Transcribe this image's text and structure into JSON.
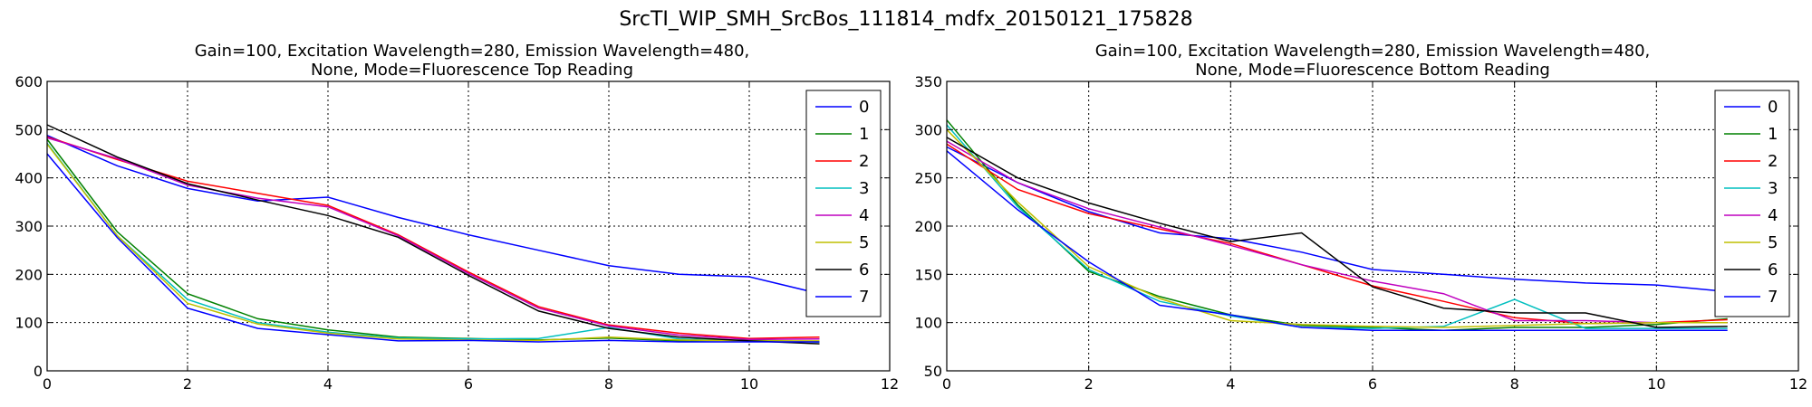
{
  "figure": {
    "suptitle": "SrcTI_WIP_SMH_SrcBos_111814_mdfx_20150121_175828"
  },
  "colors": [
    "#0000ff",
    "#008000",
    "#ff0000",
    "#00bfbf",
    "#bf00bf",
    "#bfbf00",
    "#000000",
    "#0000ff"
  ],
  "chart_data": [
    {
      "type": "line",
      "title_line1": "Gain=100, Excitation Wavelength=280, Emission Wavelength=480,",
      "title_line2": "None, Mode=Fluorescence Top Reading",
      "xlim": [
        0,
        12
      ],
      "ylim": [
        0,
        600
      ],
      "xticks": [
        0,
        2,
        4,
        6,
        8,
        10,
        12
      ],
      "yticks": [
        0,
        100,
        200,
        300,
        400,
        500,
        600
      ],
      "grid": true,
      "legend_position": "top-right",
      "x": [
        0,
        1,
        2,
        3,
        4,
        5,
        6,
        7,
        8,
        9,
        10,
        11
      ],
      "series": [
        {
          "name": "0",
          "values": [
            488,
            425,
            378,
            352,
            360,
            318,
            282,
            250,
            218,
            200,
            195,
            160
          ]
        },
        {
          "name": "1",
          "values": [
            480,
            288,
            160,
            108,
            85,
            70,
            67,
            64,
            68,
            62,
            64,
            60
          ]
        },
        {
          "name": "2",
          "values": [
            485,
            438,
            393,
            368,
            343,
            282,
            205,
            133,
            95,
            78,
            67,
            70
          ]
        },
        {
          "name": "3",
          "values": [
            472,
            280,
            148,
            100,
            80,
            68,
            66,
            67,
            90,
            66,
            62,
            60
          ]
        },
        {
          "name": "4",
          "values": [
            483,
            440,
            385,
            358,
            340,
            280,
            202,
            130,
            93,
            74,
            65,
            66
          ]
        },
        {
          "name": "5",
          "values": [
            470,
            280,
            140,
            97,
            78,
            66,
            64,
            63,
            70,
            64,
            62,
            62
          ]
        },
        {
          "name": "6",
          "values": [
            510,
            443,
            388,
            354,
            322,
            277,
            198,
            124,
            88,
            70,
            62,
            56
          ]
        },
        {
          "name": "7",
          "values": [
            450,
            276,
            130,
            88,
            75,
            62,
            63,
            60,
            63,
            60,
            60,
            60
          ]
        }
      ]
    },
    {
      "type": "line",
      "title_line1": "Gain=100, Excitation Wavelength=280, Emission Wavelength=480,",
      "title_line2": "None, Mode=Fluorescence Bottom Reading",
      "xlim": [
        0,
        12
      ],
      "ylim": [
        50,
        350
      ],
      "xticks": [
        0,
        2,
        4,
        6,
        8,
        10,
        12
      ],
      "yticks": [
        50,
        100,
        150,
        200,
        250,
        300,
        350
      ],
      "grid": true,
      "legend_position": "top-right",
      "x": [
        0,
        1,
        2,
        3,
        4,
        5,
        6,
        7,
        8,
        9,
        10,
        11
      ],
      "series": [
        {
          "name": "0",
          "values": [
            282,
            245,
            215,
            193,
            187,
            173,
            155,
            150,
            145,
            141,
            139,
            132
          ]
        },
        {
          "name": "1",
          "values": [
            310,
            222,
            153,
            127,
            108,
            97,
            95,
            92,
            95,
            95,
            98,
            104
          ]
        },
        {
          "name": "2",
          "values": [
            285,
            238,
            213,
            197,
            182,
            160,
            138,
            122,
            105,
            99,
            100,
            103
          ]
        },
        {
          "name": "3",
          "values": [
            305,
            220,
            155,
            122,
            107,
            95,
            94,
            96,
            124,
            94,
            94,
            94
          ]
        },
        {
          "name": "4",
          "values": [
            288,
            245,
            218,
            199,
            180,
            160,
            143,
            130,
            102,
            102,
            100,
            100
          ]
        },
        {
          "name": "5",
          "values": [
            300,
            225,
            158,
            125,
            102,
            98,
            96,
            95,
            97,
            99,
            100,
            100
          ]
        },
        {
          "name": "6",
          "values": [
            292,
            250,
            224,
            203,
            184,
            193,
            137,
            115,
            110,
            110,
            95,
            96
          ]
        },
        {
          "name": "7",
          "values": [
            278,
            217,
            163,
            118,
            108,
            95,
            92,
            92,
            92,
            92,
            92,
            92
          ]
        }
      ]
    }
  ]
}
